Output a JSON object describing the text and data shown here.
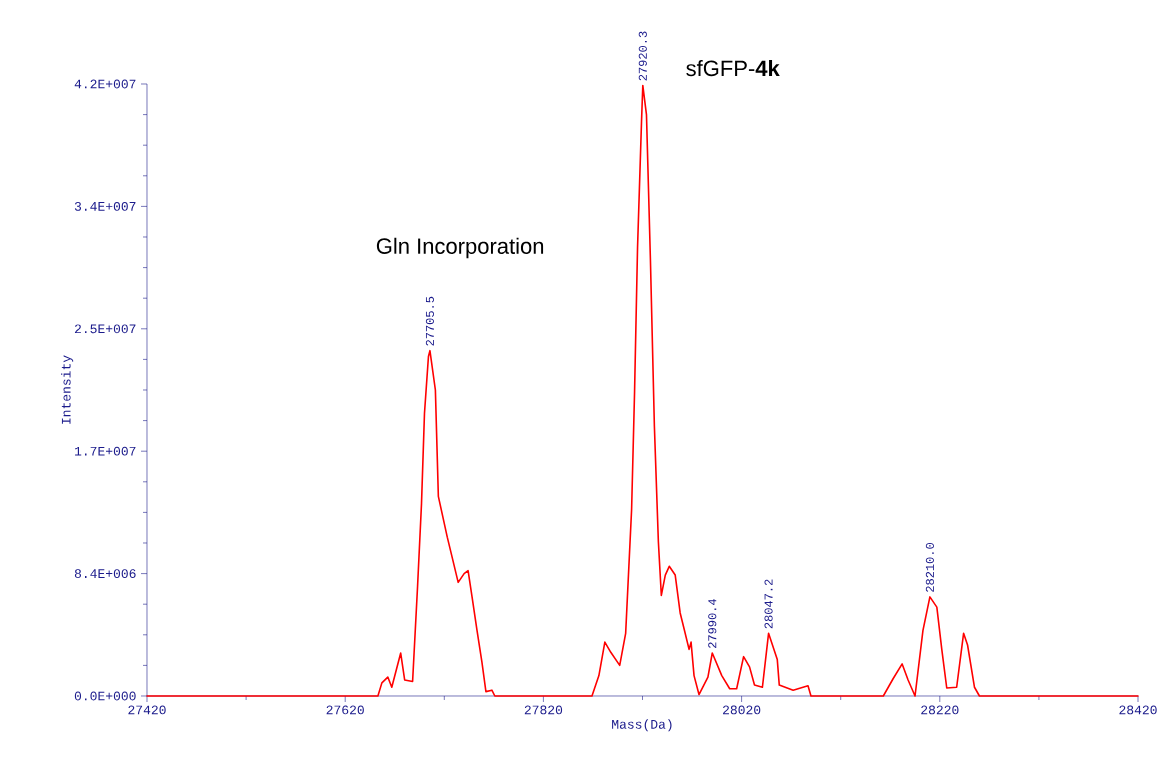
{
  "chart_data": {
    "type": "line",
    "xlabel": "Mass(Da)",
    "ylabel": "Intensity",
    "xlim": [
      27420,
      28420
    ],
    "ylim": [
      0,
      42000000
    ],
    "xticks": [
      27420,
      27620,
      27820,
      28020,
      28220,
      28420
    ],
    "yticks": [
      {
        "value": 0,
        "label": "0.0E+000"
      },
      {
        "value": 8400000,
        "label": "8.4E+006"
      },
      {
        "value": 16800000,
        "label": "1.7E+007"
      },
      {
        "value": 25200000,
        "label": "2.5E+007"
      },
      {
        "value": 33600000,
        "label": "3.4E+007"
      },
      {
        "value": 42000000,
        "label": "4.2E+007"
      }
    ],
    "grid": false,
    "marker": "none",
    "line_style": "solid",
    "series": [
      {
        "color": "#ff0000",
        "x": [
          27420,
          27653,
          27657,
          27663,
          27667,
          27676,
          27680,
          27688,
          27693,
          27697,
          27700,
          27704,
          27705.5,
          27711,
          27714,
          27723,
          27728,
          27734,
          27740,
          27744,
          27748,
          27753,
          27758,
          27762,
          27768,
          27771,
          27869,
          27876,
          27882,
          27888,
          27897,
          27903,
          27909,
          27912,
          27915,
          27919,
          27920.3,
          27924,
          27928,
          27932,
          27936,
          27939,
          27943,
          27947,
          27953,
          27958,
          27962,
          27967,
          27969,
          27972,
          27977,
          27986,
          27990.4,
          28000,
          28008,
          28015,
          28022,
          28028,
          28033,
          28041,
          28047.2,
          28056,
          28058,
          28072,
          28087,
          28090,
          28163,
          28173,
          28182,
          28188,
          28195,
          28203,
          28210,
          28217,
          28222,
          28227,
          28237,
          28244,
          28248,
          28255,
          28260,
          28420
        ],
        "values": [
          0,
          0,
          900000,
          1300000,
          600000,
          2950000,
          1100000,
          1000000,
          7500000,
          13200000,
          19400000,
          23300000,
          23700000,
          21000000,
          13700000,
          10900000,
          9500000,
          7800000,
          8400000,
          8600000,
          6800000,
          4500000,
          2300000,
          300000,
          400000,
          0,
          0,
          1400000,
          3700000,
          3000000,
          2100000,
          4300000,
          12800000,
          20900000,
          30800000,
          39400000,
          41900000,
          39900000,
          29900000,
          18500000,
          10600000,
          6900000,
          8300000,
          8900000,
          8300000,
          5700000,
          4600000,
          3200000,
          3700000,
          1400000,
          100000,
          1300000,
          2950000,
          1400000,
          500000,
          500000,
          2700000,
          2000000,
          750000,
          600000,
          4300000,
          2500000,
          750000,
          400000,
          700000,
          0,
          0,
          1200000,
          2200000,
          1100000,
          0,
          4500000,
          6800000,
          6100000,
          3200000,
          550000,
          600000,
          4300000,
          3500000,
          600000,
          0,
          0
        ]
      }
    ],
    "annotations": [
      {
        "text": "27705.5",
        "x": 27705.5,
        "y": 23700000
      },
      {
        "text": "27920.3",
        "x": 27920.3,
        "y": 41900000
      },
      {
        "text": "27990.4",
        "x": 27990.4,
        "y": 2950000
      },
      {
        "text": "28047.2",
        "x": 28047.2,
        "y": 4300000
      },
      {
        "text": "28210.0",
        "x": 28210,
        "y": 6800000
      },
      "Gln Incorporation",
      "sfGFP-**4k**"
    ]
  }
}
